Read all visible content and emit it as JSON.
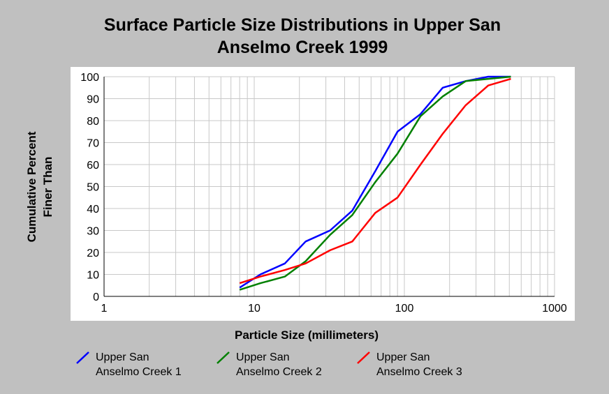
{
  "chart_data": {
    "type": "line",
    "title_line1": "Surface Particle Size Distributions in Upper San",
    "title_line2": "Anselmo Creek 1999",
    "xlabel": "Particle Size (millimeters)",
    "ylabel_line1": "Cumulative Percent",
    "ylabel_line2": "Finer Than",
    "x_scale": "log",
    "xlim": [
      1,
      1000
    ],
    "ylim": [
      0,
      100
    ],
    "x_ticks": [
      1,
      10,
      100,
      1000
    ],
    "x_tick_labels": [
      "1",
      "10",
      "100",
      "1000"
    ],
    "y_ticks": [
      0,
      10,
      20,
      30,
      40,
      50,
      60,
      70,
      80,
      90,
      100
    ],
    "y_tick_labels": [
      "0",
      "10",
      "20",
      "30",
      "40",
      "50",
      "60",
      "70",
      "80",
      "90",
      "100"
    ],
    "grid": true,
    "legend_position": "bottom",
    "series": [
      {
        "name_line1": "Upper San",
        "name_line2": "Anselmo Creek 1",
        "color": "#0000ff",
        "points": [
          [
            8,
            4
          ],
          [
            11,
            10
          ],
          [
            16,
            15
          ],
          [
            22,
            25
          ],
          [
            32,
            30
          ],
          [
            45,
            39
          ],
          [
            64,
            57
          ],
          [
            90,
            75
          ],
          [
            128,
            83
          ],
          [
            180,
            95
          ],
          [
            256,
            98
          ],
          [
            362,
            100
          ],
          [
            512,
            100
          ]
        ]
      },
      {
        "name_line1": "Upper San",
        "name_line2": "Anselmo Creek 2",
        "color": "#008000",
        "points": [
          [
            8,
            3
          ],
          [
            11,
            6
          ],
          [
            16,
            9
          ],
          [
            22,
            16
          ],
          [
            32,
            28
          ],
          [
            45,
            37
          ],
          [
            64,
            52
          ],
          [
            90,
            65
          ],
          [
            128,
            82
          ],
          [
            180,
            91
          ],
          [
            256,
            98
          ],
          [
            362,
            99
          ],
          [
            512,
            100
          ]
        ]
      },
      {
        "name_line1": "Upper San",
        "name_line2": "Anselmo Creek 3",
        "color": "#ff0000",
        "points": [
          [
            8,
            6
          ],
          [
            11,
            9
          ],
          [
            16,
            12
          ],
          [
            22,
            15
          ],
          [
            32,
            21
          ],
          [
            45,
            25
          ],
          [
            64,
            38
          ],
          [
            90,
            45
          ],
          [
            128,
            60
          ],
          [
            180,
            74
          ],
          [
            256,
            87
          ],
          [
            362,
            96
          ],
          [
            512,
            99
          ]
        ]
      }
    ]
  }
}
